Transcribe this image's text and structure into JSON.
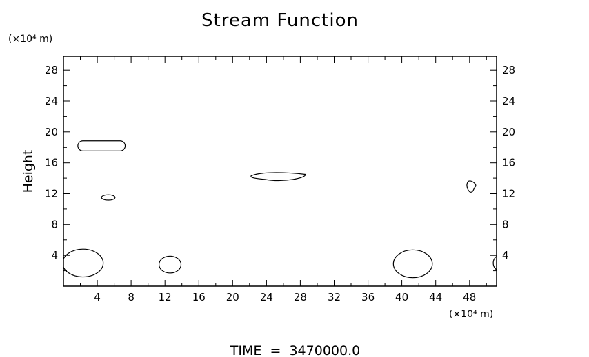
{
  "chart_data": {
    "type": "contour",
    "title": "Stream Function",
    "ylabel": "Height",
    "y_unit": "(×10⁴ m)",
    "x_unit": "(×10⁴ m)",
    "footer": "TIME  =  3470000.0",
    "xlim": [
      0,
      51.2
    ],
    "ylim": [
      0,
      29.8
    ],
    "x_ticks": [
      4,
      8,
      12,
      16,
      20,
      24,
      28,
      32,
      36,
      40,
      44,
      48
    ],
    "y_ticks": [
      4,
      8,
      12,
      16,
      20,
      24,
      28
    ],
    "contours": [
      {
        "shape": "rounded",
        "cx": 4.5,
        "cy": 18.2,
        "rx": 2.8,
        "ry": 0.65
      },
      {
        "shape": "ellipse",
        "cx": 5.3,
        "cy": 11.5,
        "rx": 0.8,
        "ry": 0.35
      },
      {
        "shape": "lens",
        "cx": 25.4,
        "cy": 14.2,
        "rx": 3.2,
        "ry": 0.6
      },
      {
        "shape": "blob",
        "cx": 48.2,
        "cy": 12.9,
        "rx": 0.6,
        "ry": 0.7
      },
      {
        "shape": "ellipse",
        "cx": 2.3,
        "cy": 3.0,
        "rx": 2.4,
        "ry": 1.8
      },
      {
        "shape": "ellipse",
        "cx": 12.6,
        "cy": 2.8,
        "rx": 1.3,
        "ry": 1.1
      },
      {
        "shape": "ellipse",
        "cx": 41.3,
        "cy": 2.9,
        "rx": 2.3,
        "ry": 1.8
      },
      {
        "shape": "ellipse",
        "cx": 51.6,
        "cy": 3.0,
        "rx": 0.8,
        "ry": 1.0
      }
    ]
  }
}
